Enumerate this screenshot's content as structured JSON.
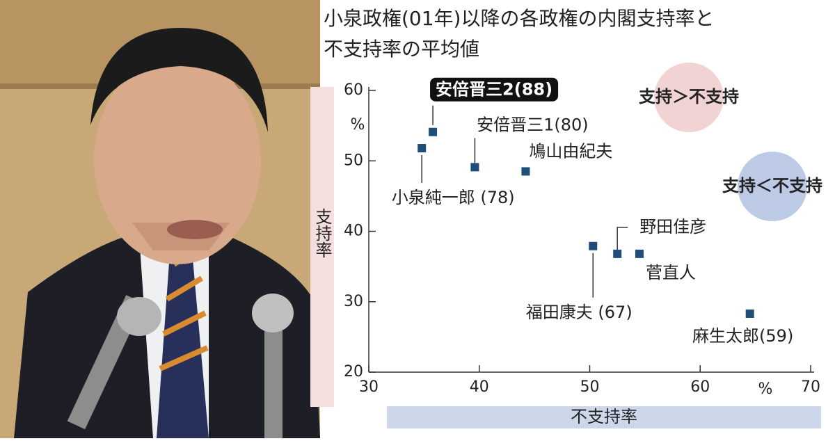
{
  "chart_data": {
    "type": "scatter",
    "title": [
      "小泉政権(01年)以降の各政権の内閣支持率と",
      "不支持率の平均値"
    ],
    "xlabel": "不支持率",
    "ylabel": "支持率",
    "xunit": "%",
    "yunit": "%",
    "x": [
      34.8,
      35.8,
      39.6,
      44.2,
      50.3,
      52.5,
      54.5,
      64.5
    ],
    "values": [
      51.8,
      54.1,
      49.1,
      48.5,
      37.9,
      36.8,
      36.8,
      28.3
    ],
    "point_labels": [
      "小泉純一郎 (78)",
      "安倍晋三2(88)",
      "安倍晋三1(80)",
      "鳩山由紀夫",
      "福田康夫 (67)",
      "野田佳彦",
      "菅直人",
      "麻生太郎(59)"
    ],
    "highlight_index": 1,
    "color": "#1f4e79",
    "xlim": [
      30,
      70
    ],
    "xticks": [
      30,
      40,
      50,
      60,
      70
    ],
    "ylim": [
      20,
      60
    ],
    "yticks": [
      20,
      30,
      40,
      50,
      60
    ],
    "legend": [
      {
        "label": "支持＞不支持",
        "color": "#f2d3d3"
      },
      {
        "label": "支持＜不支持",
        "color": "#bccae6"
      }
    ]
  }
}
